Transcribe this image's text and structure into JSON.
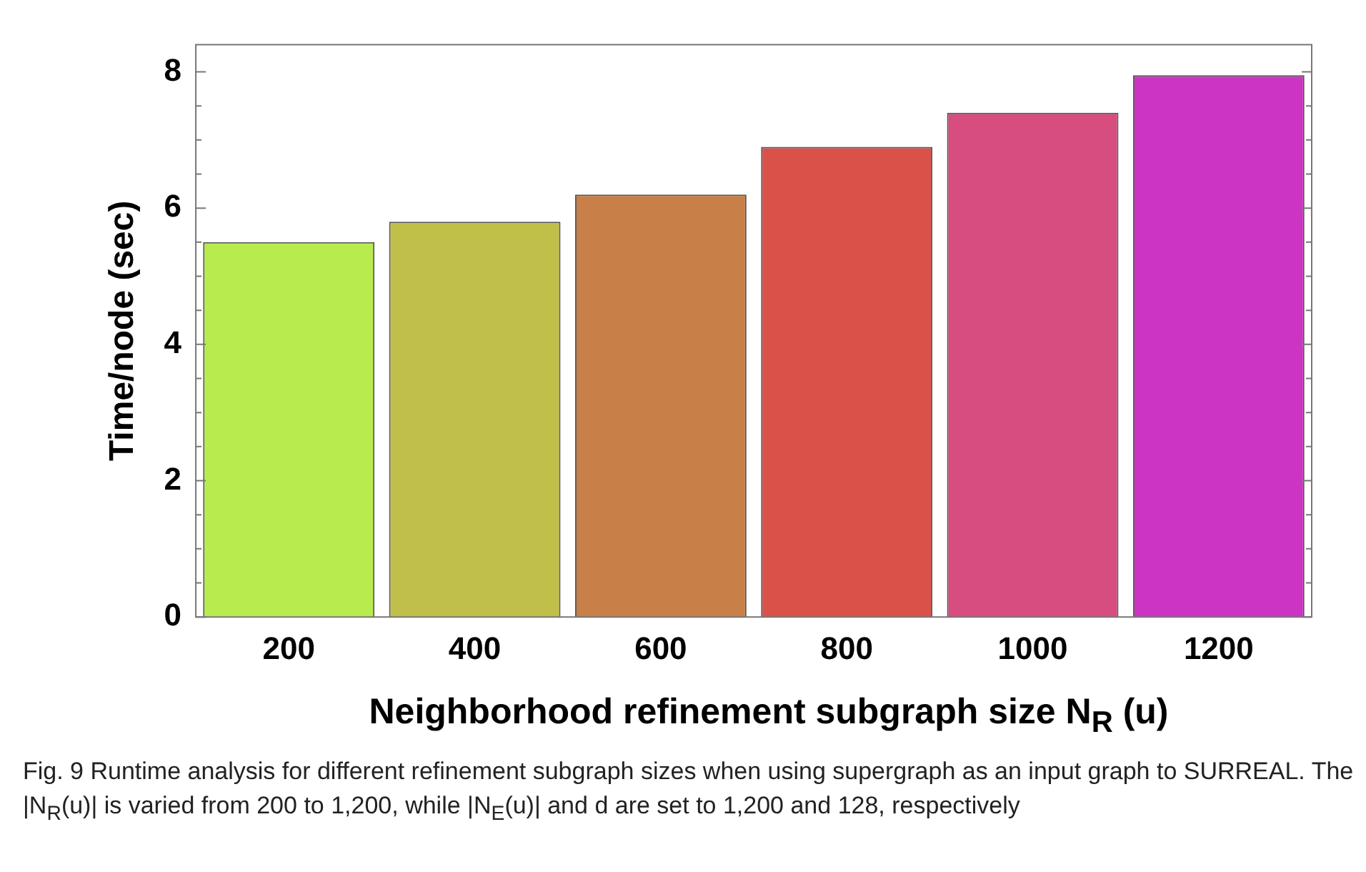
{
  "chart_data": {
    "type": "bar",
    "categories": [
      "200",
      "400",
      "600",
      "800",
      "1000",
      "1200"
    ],
    "values": [
      5.5,
      5.8,
      6.2,
      6.9,
      7.4,
      7.95
    ],
    "colors": [
      "#b8ec4e",
      "#c0bf4a",
      "#c87f48",
      "#da514a",
      "#d84d80",
      "#cc35c4"
    ],
    "xlabel": "Neighborhood refinement subgraph size N$_{R}$ (u)",
    "ylabel": "Time/node (sec)",
    "ylim": [
      0,
      8.4
    ],
    "yticks": [
      0,
      {
        "value": 0.5,
        "label": null
      },
      {
        "value": 1,
        "label": null
      },
      {
        "value": 1.5,
        "label": null
      },
      2,
      {
        "value": 2.5,
        "label": null
      },
      {
        "value": 3,
        "label": null
      },
      {
        "value": 3.5,
        "label": null
      },
      4,
      {
        "value": 4.5,
        "label": null
      },
      {
        "value": 5,
        "label": null
      },
      {
        "value": 5.5,
        "label": null
      },
      6,
      {
        "value": 6.5,
        "label": null
      },
      {
        "value": 7,
        "label": null
      },
      {
        "value": 7.5,
        "label": null
      },
      8
    ],
    "grid": false,
    "legend": false,
    "annotations": [
      "Fig. 9  Runtime analysis for different refinement subgraph sizes when using supergraph as an input graph to SURREAL. The |N$_{R}$(u)| is varied from 200 to 1,200, while |N$_{E}$(u)| and d are set to 1,200 and 128, respectively"
    ]
  }
}
